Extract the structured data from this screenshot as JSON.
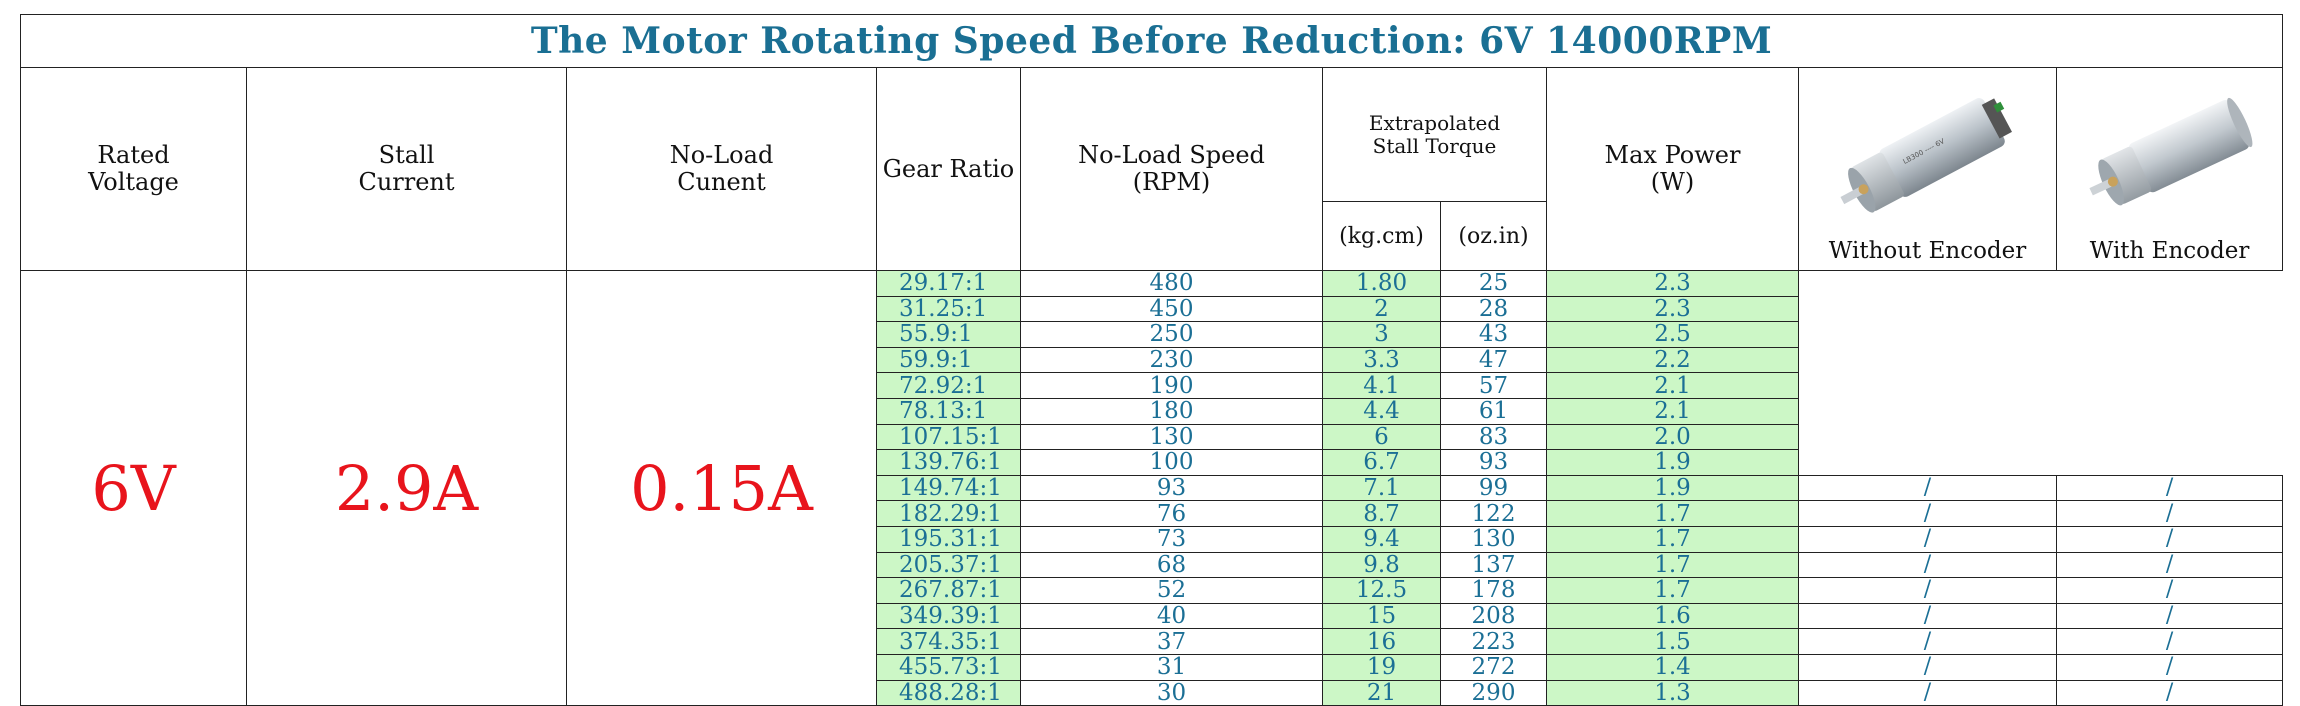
{
  "title": "The Motor Rotating Speed Before Reduction: 6V 14000RPM",
  "headers": {
    "rated_voltage": [
      "Rated",
      "Voltage"
    ],
    "stall_current": [
      "Stall",
      "Current"
    ],
    "no_load_current": [
      "No-Load",
      "Cunent"
    ],
    "gear_ratio": "Gear Ratio",
    "no_load_speed": [
      "No-Load Speed",
      "(RPM)"
    ],
    "stall_torque": [
      "Extrapolated",
      "Stall Torque"
    ],
    "torque_unit_kg": "(kg.cm)",
    "torque_unit_oz": "(oz.in)",
    "max_power": [
      "Max Power",
      "(W)"
    ],
    "without_encoder": "Without Encoder",
    "with_encoder": "With Encoder"
  },
  "values": {
    "rated_voltage": "6V",
    "stall_current": "2.9A",
    "no_load_current": "0.15A"
  },
  "placeholder": "/",
  "rows": [
    {
      "ratio": "29.17:1",
      "speed": "480",
      "kgcm": "1.80",
      "ozin": "25",
      "power": "2.3"
    },
    {
      "ratio": "31.25:1",
      "speed": "450",
      "kgcm": "2",
      "ozin": "28",
      "power": "2.3"
    },
    {
      "ratio": "55.9:1",
      "speed": "250",
      "kgcm": "3",
      "ozin": "43",
      "power": "2.5"
    },
    {
      "ratio": "59.9:1",
      "speed": "230",
      "kgcm": "3.3",
      "ozin": "47",
      "power": "2.2"
    },
    {
      "ratio": "72.92:1",
      "speed": "190",
      "kgcm": "4.1",
      "ozin": "57",
      "power": "2.1"
    },
    {
      "ratio": "78.13:1",
      "speed": "180",
      "kgcm": "4.4",
      "ozin": "61",
      "power": "2.1"
    },
    {
      "ratio": "107.15:1",
      "speed": "130",
      "kgcm": "6",
      "ozin": "83",
      "power": "2.0"
    },
    {
      "ratio": "139.76:1",
      "speed": "100",
      "kgcm": "6.7",
      "ozin": "93",
      "power": "1.9"
    },
    {
      "ratio": "149.74:1",
      "speed": "93",
      "kgcm": "7.1",
      "ozin": "99",
      "power": "1.9"
    },
    {
      "ratio": "182.29:1",
      "speed": "76",
      "kgcm": "8.7",
      "ozin": "122",
      "power": "1.7"
    },
    {
      "ratio": "195.31:1",
      "speed": "73",
      "kgcm": "9.4",
      "ozin": "130",
      "power": "1.7"
    },
    {
      "ratio": "205.37:1",
      "speed": "68",
      "kgcm": "9.8",
      "ozin": "137",
      "power": "1.7"
    },
    {
      "ratio": "267.87:1",
      "speed": "52",
      "kgcm": "12.5",
      "ozin": "178",
      "power": "1.7"
    },
    {
      "ratio": "349.39:1",
      "speed": "40",
      "kgcm": "15",
      "ozin": "208",
      "power": "1.6"
    },
    {
      "ratio": "374.35:1",
      "speed": "37",
      "kgcm": "16",
      "ozin": "223",
      "power": "1.5"
    },
    {
      "ratio": "455.73:1",
      "speed": "31",
      "kgcm": "19",
      "ozin": "272",
      "power": "1.4"
    },
    {
      "ratio": "488.28:1",
      "speed": "30",
      "kgcm": "21",
      "ozin": "290",
      "power": "1.3"
    }
  ],
  "colors": {
    "title": "#1a6f93",
    "value_text": "#1b6f95",
    "highlight": "#e8141c",
    "green_fill": "#ccf7c6"
  },
  "icons": [
    "motor-without-encoder-image",
    "motor-with-encoder-image"
  ]
}
